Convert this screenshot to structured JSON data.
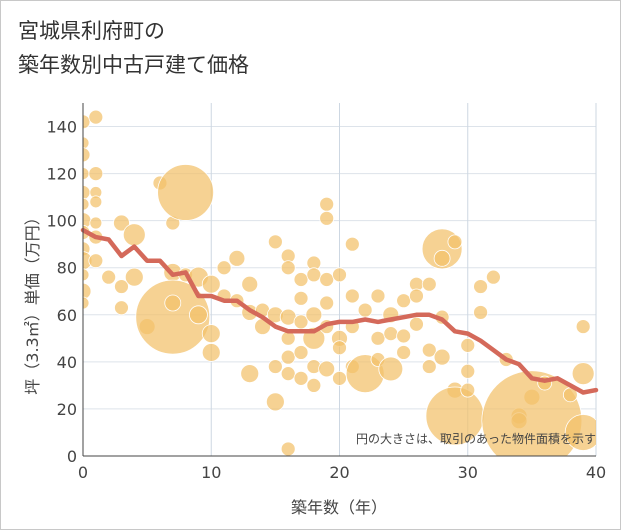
{
  "title_line1": "宮城県利府町の",
  "title_line2": "築年数別中古戸建て価格",
  "chart_data": {
    "type": "scatter",
    "xlabel": "築年数（年）",
    "ylabel": "坪（3.3㎡）単価（万円）",
    "xlim": [
      0,
      40
    ],
    "ylim": [
      0,
      150
    ],
    "xticks": [
      "0",
      "10",
      "20",
      "30",
      "40"
    ],
    "yticks": [
      "0",
      "20",
      "40",
      "60",
      "80",
      "100",
      "120",
      "140"
    ],
    "grid": true,
    "note": "円の大きさは、取引のあった物件面積を示す",
    "bubble_color": "#f3c06a",
    "line_color": "#d4695a",
    "points": [
      {
        "x": 0,
        "y": 142,
        "s": 7
      },
      {
        "x": 0,
        "y": 133,
        "s": 6
      },
      {
        "x": 0,
        "y": 128,
        "s": 7
      },
      {
        "x": 0,
        "y": 120,
        "s": 6
      },
      {
        "x": 0,
        "y": 112,
        "s": 7
      },
      {
        "x": 0,
        "y": 107,
        "s": 6
      },
      {
        "x": 0,
        "y": 100,
        "s": 8
      },
      {
        "x": 0,
        "y": 95,
        "s": 7
      },
      {
        "x": 0,
        "y": 88,
        "s": 7
      },
      {
        "x": 0,
        "y": 83,
        "s": 9
      },
      {
        "x": 0,
        "y": 77,
        "s": 6
      },
      {
        "x": 0,
        "y": 70,
        "s": 8
      },
      {
        "x": 0,
        "y": 65,
        "s": 6
      },
      {
        "x": 1,
        "y": 144,
        "s": 7
      },
      {
        "x": 1,
        "y": 120,
        "s": 7
      },
      {
        "x": 1,
        "y": 112,
        "s": 6
      },
      {
        "x": 1,
        "y": 108,
        "s": 6
      },
      {
        "x": 1,
        "y": 99,
        "s": 6
      },
      {
        "x": 1,
        "y": 93,
        "s": 7
      },
      {
        "x": 1,
        "y": 83,
        "s": 7
      },
      {
        "x": 2,
        "y": 76,
        "s": 7
      },
      {
        "x": 3,
        "y": 99,
        "s": 8
      },
      {
        "x": 3,
        "y": 72,
        "s": 7
      },
      {
        "x": 3,
        "y": 63,
        "s": 7
      },
      {
        "x": 4,
        "y": 94,
        "s": 11
      },
      {
        "x": 4,
        "y": 76,
        "s": 9
      },
      {
        "x": 5,
        "y": 55,
        "s": 8
      },
      {
        "x": 6,
        "y": 116,
        "s": 7
      },
      {
        "x": 7,
        "y": 99,
        "s": 7
      },
      {
        "x": 7,
        "y": 78,
        "s": 9
      },
      {
        "x": 7,
        "y": 59,
        "s": 37
      },
      {
        "x": 7,
        "y": 65,
        "s": 8
      },
      {
        "x": 8,
        "y": 112,
        "s": 28
      },
      {
        "x": 8,
        "y": 77,
        "s": 7
      },
      {
        "x": 9,
        "y": 76,
        "s": 10
      },
      {
        "x": 9,
        "y": 60,
        "s": 9
      },
      {
        "x": 10,
        "y": 73,
        "s": 9
      },
      {
        "x": 10,
        "y": 52,
        "s": 9
      },
      {
        "x": 10,
        "y": 44,
        "s": 9
      },
      {
        "x": 11,
        "y": 68,
        "s": 7
      },
      {
        "x": 11,
        "y": 80,
        "s": 7
      },
      {
        "x": 12,
        "y": 84,
        "s": 8
      },
      {
        "x": 12,
        "y": 66,
        "s": 7
      },
      {
        "x": 13,
        "y": 73,
        "s": 8
      },
      {
        "x": 13,
        "y": 61,
        "s": 8
      },
      {
        "x": 13,
        "y": 35,
        "s": 9
      },
      {
        "x": 14,
        "y": 62,
        "s": 7
      },
      {
        "x": 14,
        "y": 55,
        "s": 8
      },
      {
        "x": 15,
        "y": 91,
        "s": 7
      },
      {
        "x": 15,
        "y": 60,
        "s": 8
      },
      {
        "x": 15,
        "y": 38,
        "s": 7
      },
      {
        "x": 15,
        "y": 23,
        "s": 9
      },
      {
        "x": 16,
        "y": 85,
        "s": 7
      },
      {
        "x": 16,
        "y": 80,
        "s": 7
      },
      {
        "x": 16,
        "y": 59,
        "s": 8
      },
      {
        "x": 16,
        "y": 50,
        "s": 7
      },
      {
        "x": 16,
        "y": 42,
        "s": 7
      },
      {
        "x": 16,
        "y": 35,
        "s": 7
      },
      {
        "x": 16,
        "y": 3,
        "s": 7
      },
      {
        "x": 17,
        "y": 75,
        "s": 7
      },
      {
        "x": 17,
        "y": 67,
        "s": 7
      },
      {
        "x": 17,
        "y": 57,
        "s": 7
      },
      {
        "x": 17,
        "y": 44,
        "s": 7
      },
      {
        "x": 17,
        "y": 33,
        "s": 7
      },
      {
        "x": 18,
        "y": 82,
        "s": 7
      },
      {
        "x": 18,
        "y": 77,
        "s": 7
      },
      {
        "x": 18,
        "y": 60,
        "s": 8
      },
      {
        "x": 18,
        "y": 50,
        "s": 11
      },
      {
        "x": 18,
        "y": 38,
        "s": 7
      },
      {
        "x": 18,
        "y": 30,
        "s": 7
      },
      {
        "x": 19,
        "y": 107,
        "s": 7
      },
      {
        "x": 19,
        "y": 101,
        "s": 7
      },
      {
        "x": 19,
        "y": 75,
        "s": 7
      },
      {
        "x": 19,
        "y": 65,
        "s": 7
      },
      {
        "x": 19,
        "y": 55,
        "s": 7
      },
      {
        "x": 19,
        "y": 37,
        "s": 8
      },
      {
        "x": 20,
        "y": 77,
        "s": 7
      },
      {
        "x": 20,
        "y": 50,
        "s": 8
      },
      {
        "x": 20,
        "y": 46,
        "s": 7
      },
      {
        "x": 20,
        "y": 33,
        "s": 7
      },
      {
        "x": 21,
        "y": 90,
        "s": 7
      },
      {
        "x": 21,
        "y": 68,
        "s": 7
      },
      {
        "x": 21,
        "y": 55,
        "s": 7
      },
      {
        "x": 21,
        "y": 38,
        "s": 7
      },
      {
        "x": 22,
        "y": 62,
        "s": 7
      },
      {
        "x": 22,
        "y": 35,
        "s": 19
      },
      {
        "x": 23,
        "y": 68,
        "s": 7
      },
      {
        "x": 23,
        "y": 50,
        "s": 7
      },
      {
        "x": 23,
        "y": 41,
        "s": 7
      },
      {
        "x": 24,
        "y": 60,
        "s": 8
      },
      {
        "x": 24,
        "y": 52,
        "s": 7
      },
      {
        "x": 24,
        "y": 37,
        "s": 12
      },
      {
        "x": 25,
        "y": 66,
        "s": 7
      },
      {
        "x": 25,
        "y": 51,
        "s": 7
      },
      {
        "x": 25,
        "y": 44,
        "s": 7
      },
      {
        "x": 26,
        "y": 73,
        "s": 7
      },
      {
        "x": 26,
        "y": 68,
        "s": 7
      },
      {
        "x": 26,
        "y": 56,
        "s": 7
      },
      {
        "x": 27,
        "y": 73,
        "s": 7
      },
      {
        "x": 27,
        "y": 45,
        "s": 7
      },
      {
        "x": 27,
        "y": 38,
        "s": 7
      },
      {
        "x": 28,
        "y": 88,
        "s": 20
      },
      {
        "x": 28,
        "y": 84,
        "s": 8
      },
      {
        "x": 28,
        "y": 59,
        "s": 7
      },
      {
        "x": 28,
        "y": 42,
        "s": 8
      },
      {
        "x": 29,
        "y": 91,
        "s": 7
      },
      {
        "x": 29,
        "y": 28,
        "s": 8
      },
      {
        "x": 29,
        "y": 17,
        "s": 29
      },
      {
        "x": 30,
        "y": 47,
        "s": 7
      },
      {
        "x": 30,
        "y": 36,
        "s": 7
      },
      {
        "x": 30,
        "y": 28,
        "s": 7
      },
      {
        "x": 31,
        "y": 72,
        "s": 7
      },
      {
        "x": 31,
        "y": 61,
        "s": 7
      },
      {
        "x": 32,
        "y": 76,
        "s": 7
      },
      {
        "x": 33,
        "y": 41,
        "s": 7
      },
      {
        "x": 34,
        "y": 17,
        "s": 8
      },
      {
        "x": 34,
        "y": 15,
        "s": 8
      },
      {
        "x": 35,
        "y": 25,
        "s": 8
      },
      {
        "x": 35,
        "y": 15,
        "s": 50
      },
      {
        "x": 36,
        "y": 31,
        "s": 7
      },
      {
        "x": 38,
        "y": 26,
        "s": 7
      },
      {
        "x": 39,
        "y": 55,
        "s": 7
      },
      {
        "x": 39,
        "y": 35,
        "s": 11
      },
      {
        "x": 39,
        "y": 10,
        "s": 18
      }
    ],
    "trend": [
      {
        "x": 0,
        "y": 96
      },
      {
        "x": 1,
        "y": 93
      },
      {
        "x": 2,
        "y": 92
      },
      {
        "x": 3,
        "y": 85
      },
      {
        "x": 4,
        "y": 89
      },
      {
        "x": 5,
        "y": 83
      },
      {
        "x": 6,
        "y": 83
      },
      {
        "x": 7,
        "y": 77
      },
      {
        "x": 8,
        "y": 78
      },
      {
        "x": 9,
        "y": 68
      },
      {
        "x": 10,
        "y": 68
      },
      {
        "x": 11,
        "y": 66
      },
      {
        "x": 12,
        "y": 66
      },
      {
        "x": 13,
        "y": 62
      },
      {
        "x": 14,
        "y": 59
      },
      {
        "x": 15,
        "y": 55
      },
      {
        "x": 16,
        "y": 53
      },
      {
        "x": 17,
        "y": 53
      },
      {
        "x": 18,
        "y": 53
      },
      {
        "x": 19,
        "y": 56
      },
      {
        "x": 20,
        "y": 57
      },
      {
        "x": 21,
        "y": 57
      },
      {
        "x": 22,
        "y": 58
      },
      {
        "x": 23,
        "y": 57
      },
      {
        "x": 24,
        "y": 58
      },
      {
        "x": 25,
        "y": 59
      },
      {
        "x": 26,
        "y": 60
      },
      {
        "x": 27,
        "y": 60
      },
      {
        "x": 28,
        "y": 58
      },
      {
        "x": 29,
        "y": 53
      },
      {
        "x": 30,
        "y": 52
      },
      {
        "x": 31,
        "y": 49
      },
      {
        "x": 32,
        "y": 45
      },
      {
        "x": 33,
        "y": 41
      },
      {
        "x": 34,
        "y": 39
      },
      {
        "x": 35,
        "y": 33
      },
      {
        "x": 36,
        "y": 32
      },
      {
        "x": 37,
        "y": 33
      },
      {
        "x": 38,
        "y": 30
      },
      {
        "x": 39,
        "y": 27
      },
      {
        "x": 40,
        "y": 28
      }
    ]
  }
}
